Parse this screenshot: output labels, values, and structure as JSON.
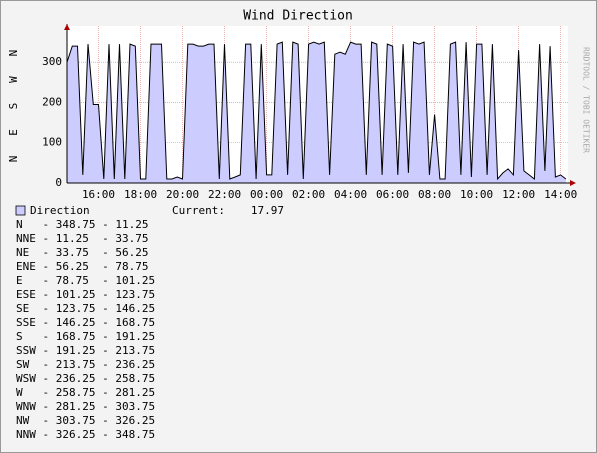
{
  "chart_data": {
    "type": "area",
    "title": "Wind Direction",
    "y_label": "N   E   S   W   N",
    "watermark": "RRDTOOL / TOBI OETIKER",
    "x": [
      14.5,
      14.75,
      15,
      15.25,
      15.5,
      15.75,
      16,
      16.25,
      16.5,
      16.75,
      17,
      17.25,
      17.5,
      17.75,
      18,
      18.25,
      18.5,
      18.75,
      19,
      19.25,
      19.5,
      19.75,
      20,
      20.25,
      20.5,
      20.75,
      21,
      21.25,
      21.5,
      21.75,
      22,
      22.25,
      22.5,
      22.75,
      23,
      23.25,
      23.5,
      23.75,
      24,
      24.25,
      24.5,
      24.75,
      25,
      25.25,
      25.5,
      25.75,
      26,
      26.25,
      26.5,
      26.75,
      27,
      27.25,
      27.5,
      27.75,
      28,
      28.25,
      28.5,
      28.75,
      29,
      29.25,
      29.5,
      29.75,
      30,
      30.25,
      30.5,
      30.75,
      31,
      31.25,
      31.5,
      31.75,
      32,
      32.25,
      32.5,
      32.75,
      33,
      33.25,
      33.5,
      33.75,
      34,
      34.25,
      34.5,
      34.75,
      35,
      35.25,
      35.5,
      35.75,
      36,
      36.25,
      36.5,
      36.75,
      37,
      37.25,
      37.5,
      37.75,
      38,
      38.25
    ],
    "series": [
      {
        "name": "Direction",
        "color": "#ccccff",
        "line_color": "#000000",
        "values": [
          300,
          340,
          340,
          20,
          345,
          195,
          195,
          10,
          345,
          10,
          345,
          10,
          345,
          340,
          10,
          10,
          345,
          345,
          345,
          10,
          10,
          15,
          10,
          345,
          345,
          340,
          340,
          345,
          345,
          10,
          345,
          10,
          15,
          20,
          345,
          345,
          10,
          345,
          20,
          20,
          345,
          350,
          20,
          350,
          345,
          10,
          345,
          350,
          345,
          350,
          20,
          320,
          325,
          320,
          350,
          345,
          345,
          20,
          350,
          345,
          20,
          345,
          340,
          20,
          345,
          25,
          350,
          345,
          350,
          20,
          170,
          10,
          10,
          345,
          350,
          20,
          350,
          15,
          345,
          345,
          20,
          345,
          10,
          25,
          35,
          20,
          330,
          30,
          20,
          10,
          345,
          30,
          340,
          15,
          20,
          10
        ]
      }
    ],
    "xlim": [
      14.5,
      38.35
    ],
    "ylim": [
      0,
      390
    ],
    "xticks": [
      {
        "value": 16,
        "label": "16:00"
      },
      {
        "value": 18,
        "label": "18:00"
      },
      {
        "value": 20,
        "label": "20:00"
      },
      {
        "value": 22,
        "label": "22:00"
      },
      {
        "value": 24,
        "label": "00:00"
      },
      {
        "value": 26,
        "label": "02:00"
      },
      {
        "value": 28,
        "label": "04:00"
      },
      {
        "value": 30,
        "label": "06:00"
      },
      {
        "value": 32,
        "label": "08:00"
      },
      {
        "value": 34,
        "label": "10:00"
      },
      {
        "value": 36,
        "label": "12:00"
      },
      {
        "value": 38,
        "label": "14:00"
      }
    ],
    "yticks": [
      0,
      100,
      200,
      300
    ],
    "grid": true,
    "current_label": "Current:",
    "current_value": 17.97,
    "compass": [
      "N   - 348.75 - 11.25",
      "NNE - 11.25  - 33.75",
      "NE  - 33.75  - 56.25",
      "ENE - 56.25  - 78.75",
      "E   - 78.75  - 101.25",
      "ESE - 101.25 - 123.75",
      "SE  - 123.75 - 146.25",
      "SSE - 146.25 - 168.75",
      "S   - 168.75 - 191.25",
      "SSW - 191.25 - 213.75",
      "SW  - 213.75 - 236.25",
      "WSW - 236.25 - 258.75",
      "W   - 258.75 - 281.25",
      "WNW - 281.25 - 303.75",
      "NW  - 303.75 - 326.25",
      "NNW - 326.25 - 348.75"
    ]
  }
}
